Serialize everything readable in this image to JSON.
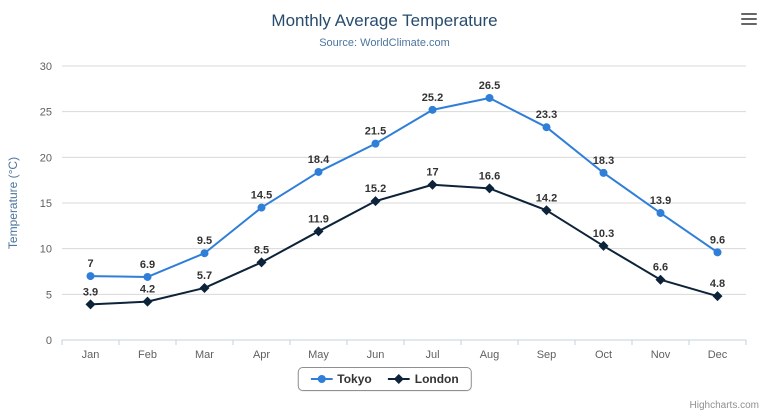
{
  "header": {
    "title": "Monthly Average Temperature",
    "subtitle": "Source: WorldClimate.com"
  },
  "chart_data": {
    "type": "line",
    "title": "Monthly Average Temperature",
    "subtitle": "Source: WorldClimate.com",
    "categories": [
      "Jan",
      "Feb",
      "Mar",
      "Apr",
      "May",
      "Jun",
      "Jul",
      "Aug",
      "Sep",
      "Oct",
      "Nov",
      "Dec"
    ],
    "series": [
      {
        "name": "Tokyo",
        "color": "#2f7ed8",
        "marker": "circle",
        "values": [
          7,
          6.9,
          9.5,
          14.5,
          18.4,
          21.5,
          25.2,
          26.5,
          23.3,
          18.3,
          13.9,
          9.6
        ]
      },
      {
        "name": "London",
        "color": "#0d233a",
        "marker": "diamond",
        "values": [
          3.9,
          4.2,
          5.7,
          8.5,
          11.9,
          15.2,
          17,
          16.6,
          14.2,
          10.3,
          6.6,
          4.8
        ]
      }
    ],
    "xlabel": "",
    "ylabel": "Temperature (°C)",
    "ylim": [
      0,
      30
    ],
    "yticks": [
      0,
      5,
      10,
      15,
      20,
      25,
      30
    ],
    "grid": true,
    "data_labels": true,
    "legend_position": "bottom"
  },
  "colors": {
    "title": "#274b6d",
    "subtitle": "#4d759e",
    "axis_title": "#4d759e",
    "axis_label": "#606060",
    "grid": "#d8d8d8",
    "axis_line": "#c0d0e0",
    "tick": "#c0d0e0",
    "data_label": "#333333",
    "legend_border": "#909090",
    "legend_text": "#333333",
    "credits": "#909090",
    "menu_icon": "#666666"
  },
  "menu": {
    "icon": "hamburger-menu-icon"
  },
  "credits": {
    "text": "Highcharts.com"
  }
}
